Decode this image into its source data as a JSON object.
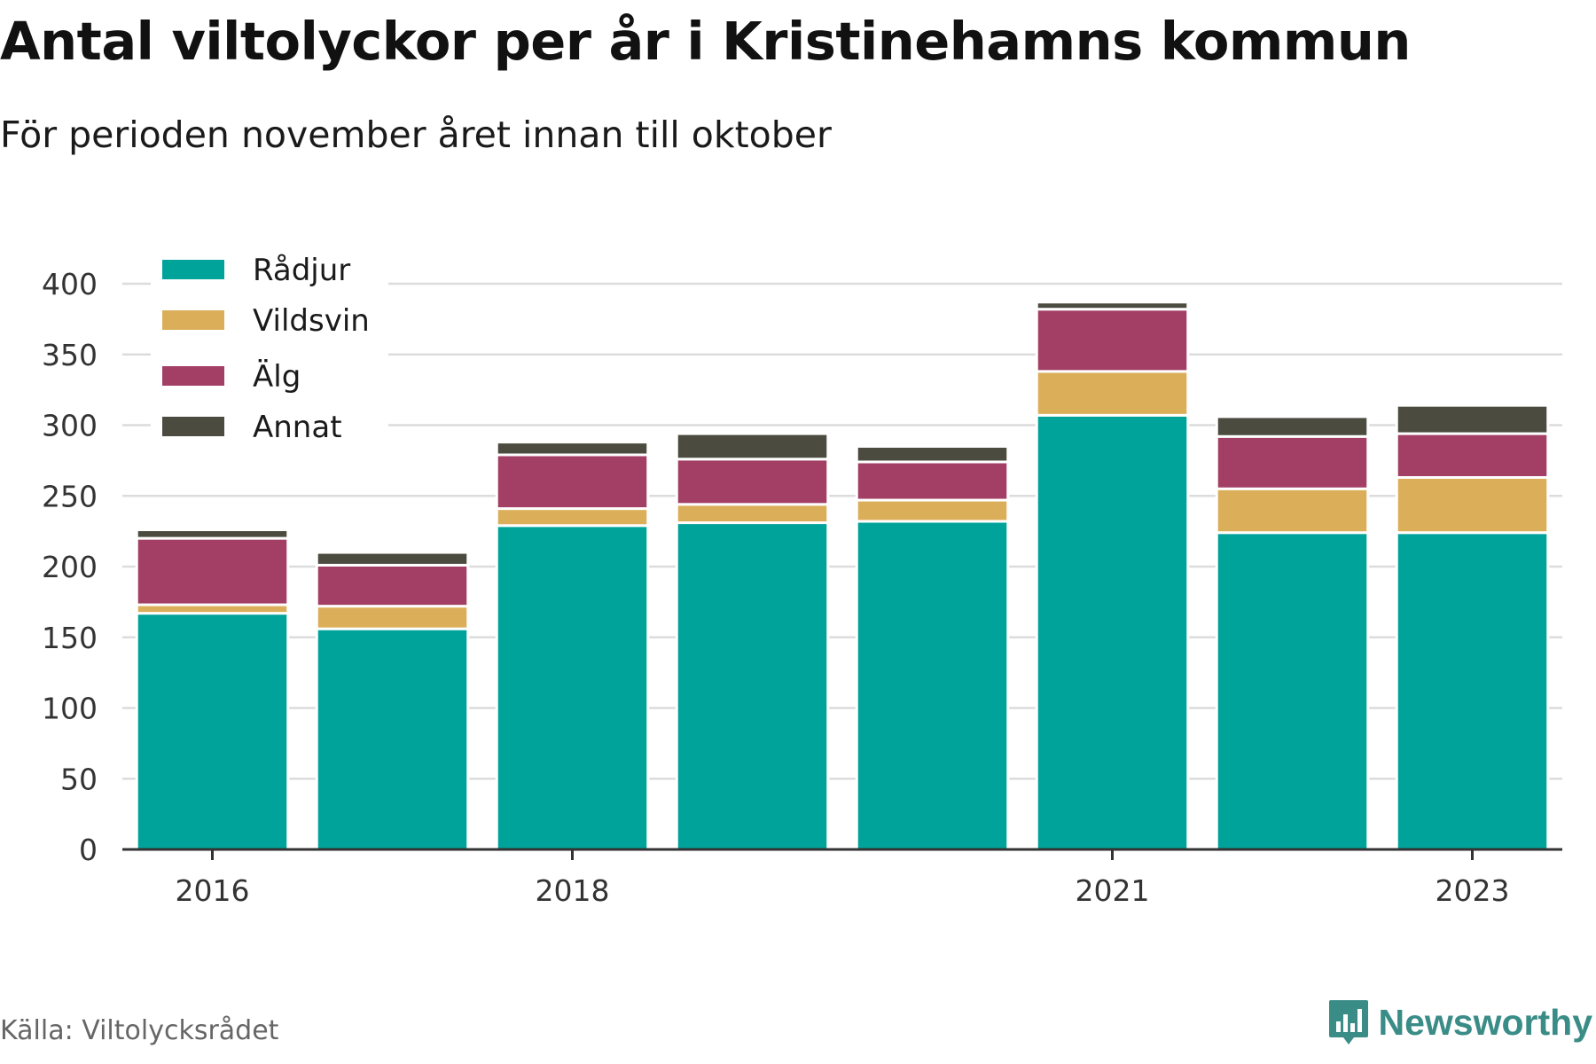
{
  "title": "Antal viltolyckor per år i Kristinehamns kommun",
  "subtitle": "För perioden november året innan till oktober",
  "source": "Källa: Viltolycksrådet",
  "brand": "Newsworthy",
  "colors": {
    "Rådjur": "#00a39a",
    "Vildsvin": "#dbae5a",
    "Älg": "#a33f64",
    "Annat": "#4b4b3f",
    "grid": "#dcdcdc",
    "axis": "#333333",
    "brand": "#3a8c87"
  },
  "chart_data": {
    "type": "bar",
    "stacked": true,
    "categories": [
      "2016",
      "2017",
      "2018",
      "2019",
      "2020",
      "2021",
      "2022",
      "2023"
    ],
    "x_tick_labels": [
      "2016",
      "",
      "2018",
      "",
      "",
      "2021",
      "",
      "2023"
    ],
    "series": [
      {
        "name": "Rådjur",
        "values": [
          167,
          156,
          229,
          231,
          232,
          307,
          224,
          224
        ]
      },
      {
        "name": "Vildsvin",
        "values": [
          6,
          16,
          12,
          13,
          15,
          31,
          31,
          39
        ]
      },
      {
        "name": "Älg",
        "values": [
          47,
          29,
          38,
          32,
          27,
          44,
          37,
          31
        ]
      },
      {
        "name": "Annat",
        "values": [
          6,
          9,
          9,
          18,
          11,
          5,
          14,
          20
        ]
      }
    ],
    "ylim": [
      0,
      400
    ],
    "yticks": [
      0,
      50,
      100,
      150,
      200,
      250,
      300,
      350,
      400
    ],
    "grid": true,
    "legend_position": "top-left"
  }
}
